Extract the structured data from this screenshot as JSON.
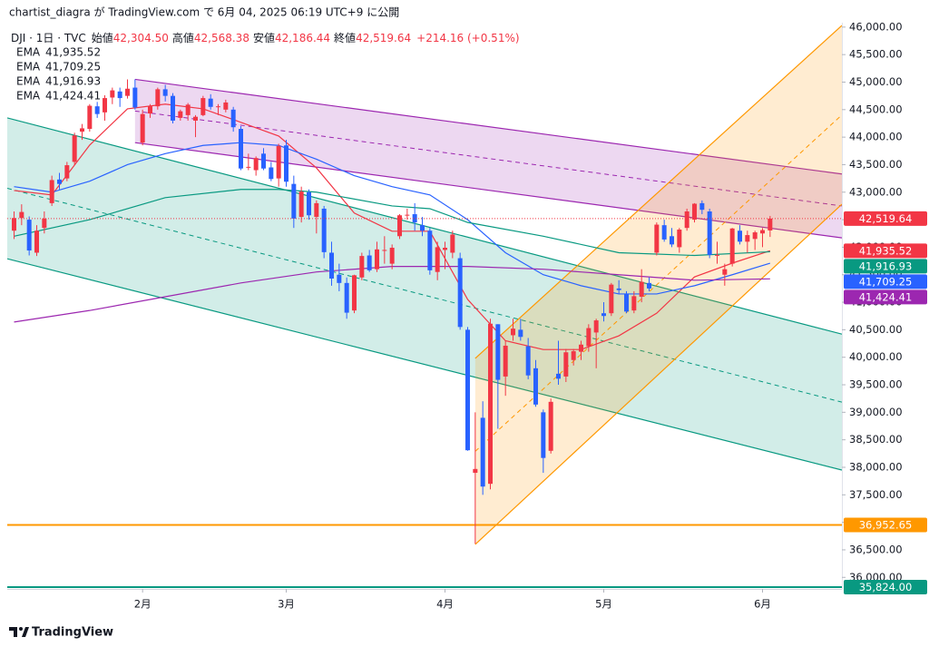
{
  "header": {
    "publisher": "chartist_diagra が TradingView.com で 6月 04, 2025 06:19 UTC+9 に公開",
    "symbol": "DJI · 1日 · TVC",
    "open_name": "始値",
    "open": "42,304.50",
    "high_name": "高値",
    "high": "42,568.38",
    "low_name": "安値",
    "low": "42,186.44",
    "close_name": "終値",
    "close": "42,519.64",
    "change": "+214.16 (+0.51%)"
  },
  "footer": "TradingView",
  "chart_data": {
    "type": "candlestick",
    "up_color": "#f23645",
    "down_color": "#2962ff",
    "xlim": [
      -0.9,
      109.5
    ],
    "xticks": [
      {
        "value": 17,
        "label": "2月"
      },
      {
        "value": 36,
        "label": "3月"
      },
      {
        "value": 57,
        "label": "4月"
      },
      {
        "value": 78,
        "label": "5月"
      },
      {
        "value": 99,
        "label": "6月"
      }
    ],
    "ylim": [
      35790,
      46080
    ],
    "yticks": [
      {
        "value": 36000,
        "label": "36,000.00"
      },
      {
        "value": 36500,
        "label": "36,500.00"
      },
      {
        "value": 37000,
        "label": "37,000.00"
      },
      {
        "value": 37500,
        "label": "37,500.00"
      },
      {
        "value": 38000,
        "label": "38,000.00"
      },
      {
        "value": 38500,
        "label": "38,500.00"
      },
      {
        "value": 39000,
        "label": "39,000.00"
      },
      {
        "value": 39500,
        "label": "39,500.00"
      },
      {
        "value": 40000,
        "label": "40,000.00"
      },
      {
        "value": 40500,
        "label": "40,500.00"
      },
      {
        "value": 41000,
        "label": "41,000.00"
      },
      {
        "value": 41500,
        "label": "41,500.00"
      },
      {
        "value": 42000,
        "label": "42,000.00"
      },
      {
        "value": 42500,
        "label": "42,500.00"
      },
      {
        "value": 43000,
        "label": "43,000.00"
      },
      {
        "value": 43500,
        "label": "43,500.00"
      },
      {
        "value": 44000,
        "label": "44,000.00"
      },
      {
        "value": 44500,
        "label": "44,500.00"
      },
      {
        "value": 45000,
        "label": "45,000.00"
      },
      {
        "value": 45500,
        "label": "45,500.00"
      },
      {
        "value": 46000,
        "label": "46,000.00"
      }
    ],
    "ohlc": [
      [
        42300,
        42650,
        42150,
        42530
      ],
      [
        42530,
        42780,
        42400,
        42640
      ],
      [
        42500,
        42560,
        41850,
        41940
      ],
      [
        41900,
        42400,
        41840,
        42300
      ],
      [
        42350,
        42650,
        42250,
        42520
      ],
      [
        42800,
        43300,
        42750,
        43220
      ],
      [
        43230,
        43350,
        43050,
        43150
      ],
      [
        43250,
        43550,
        43200,
        43490
      ],
      [
        43550,
        44080,
        43500,
        44030
      ],
      [
        44100,
        44240,
        43950,
        44160
      ],
      [
        44150,
        44600,
        44100,
        44570
      ],
      [
        44560,
        44640,
        44350,
        44420
      ],
      [
        44450,
        44760,
        44300,
        44710
      ],
      [
        44720,
        44900,
        44600,
        44850
      ],
      [
        44830,
        44900,
        44550,
        44710
      ],
      [
        44750,
        45050,
        44700,
        44880
      ],
      [
        44900,
        45050,
        44500,
        44540
      ],
      [
        43900,
        44500,
        43850,
        44420
      ],
      [
        44430,
        44600,
        44350,
        44560
      ],
      [
        44560,
        44900,
        44500,
        44870
      ],
      [
        44870,
        44950,
        44650,
        44750
      ],
      [
        44750,
        44800,
        44250,
        44300
      ],
      [
        44350,
        44500,
        44300,
        44470
      ],
      [
        44400,
        44620,
        44300,
        44590
      ],
      [
        44300,
        44400,
        44000,
        44370
      ],
      [
        44400,
        44750,
        44380,
        44710
      ],
      [
        44700,
        44780,
        44500,
        44550
      ],
      [
        44550,
        44600,
        44400,
        44560
      ],
      [
        44500,
        44680,
        44450,
        44630
      ],
      [
        44500,
        44550,
        44100,
        44180
      ],
      [
        44150,
        44200,
        43400,
        43430
      ],
      [
        43450,
        43700,
        43400,
        43460
      ],
      [
        43400,
        43650,
        43300,
        43620
      ],
      [
        43700,
        43800,
        43400,
        43430
      ],
      [
        43450,
        43550,
        43200,
        43240
      ],
      [
        43250,
        43880,
        43100,
        43840
      ],
      [
        43850,
        43950,
        43100,
        43190
      ],
      [
        43150,
        43300,
        42350,
        42520
      ],
      [
        42550,
        43100,
        42450,
        43010
      ],
      [
        43000,
        43050,
        42500,
        42580
      ],
      [
        42550,
        42850,
        42250,
        42800
      ],
      [
        42700,
        42750,
        41800,
        41910
      ],
      [
        41900,
        42100,
        41300,
        41430
      ],
      [
        41500,
        41700,
        41200,
        41350
      ],
      [
        41350,
        41450,
        40700,
        40810
      ],
      [
        40850,
        41500,
        40800,
        41490
      ],
      [
        41450,
        41900,
        41400,
        41840
      ],
      [
        41850,
        41950,
        41550,
        41580
      ],
      [
        41600,
        42100,
        41550,
        41960
      ],
      [
        41950,
        42200,
        41700,
        41950
      ],
      [
        41700,
        42050,
        41600,
        41990
      ],
      [
        42200,
        42600,
        42150,
        42580
      ],
      [
        42580,
        42700,
        42500,
        42590
      ],
      [
        42600,
        42800,
        42300,
        42450
      ],
      [
        42400,
        42550,
        42200,
        42300
      ],
      [
        42300,
        42350,
        41500,
        41580
      ],
      [
        41550,
        42100,
        41400,
        42000
      ],
      [
        41950,
        42100,
        41600,
        41990
      ],
      [
        41900,
        42300,
        41800,
        42230
      ],
      [
        41800,
        41900,
        40500,
        40550
      ],
      [
        40500,
        40550,
        38300,
        38310
      ],
      [
        37900,
        39000,
        36611,
        37970
      ],
      [
        38900,
        39200,
        37500,
        37650
      ],
      [
        37700,
        40700,
        37600,
        40610
      ],
      [
        40600,
        40600,
        38700,
        39590
      ],
      [
        39650,
        40300,
        39300,
        40210
      ],
      [
        40400,
        40700,
        40300,
        40520
      ],
      [
        40500,
        40700,
        40300,
        40370
      ],
      [
        40200,
        40350,
        39600,
        39670
      ],
      [
        39800,
        39950,
        39100,
        39140
      ],
      [
        39000,
        39050,
        37900,
        38170
      ],
      [
        38300,
        39250,
        38250,
        39190
      ],
      [
        39700,
        40300,
        39500,
        39610
      ],
      [
        39650,
        40150,
        39550,
        40090
      ],
      [
        39950,
        40150,
        39850,
        40110
      ],
      [
        40100,
        40300,
        39950,
        40230
      ],
      [
        40200,
        40600,
        40100,
        40530
      ],
      [
        40450,
        40700,
        39800,
        40670
      ],
      [
        40800,
        41000,
        40650,
        40750
      ],
      [
        40800,
        41350,
        40750,
        41320
      ],
      [
        41250,
        41400,
        41150,
        41220
      ],
      [
        41150,
        41200,
        40800,
        40830
      ],
      [
        40850,
        41200,
        40800,
        41110
      ],
      [
        41100,
        41600,
        41000,
        41370
      ],
      [
        41350,
        41450,
        41200,
        41250
      ],
      [
        41900,
        42450,
        41850,
        42410
      ],
      [
        42400,
        42500,
        42100,
        42140
      ],
      [
        42200,
        42350,
        42000,
        42050
      ],
      [
        42000,
        42350,
        41900,
        42320
      ],
      [
        42350,
        42700,
        42300,
        42650
      ],
      [
        42500,
        42800,
        42450,
        42790
      ],
      [
        42800,
        42850,
        42600,
        42680
      ],
      [
        42650,
        42700,
        41800,
        41860
      ],
      [
        41850,
        42100,
        41700,
        41860
      ],
      [
        41500,
        41700,
        41300,
        41600
      ],
      [
        41700,
        42350,
        41650,
        42340
      ],
      [
        42300,
        42400,
        42050,
        42100
      ],
      [
        42100,
        42300,
        41900,
        42220
      ],
      [
        42150,
        42300,
        41950,
        42270
      ],
      [
        42250,
        42350,
        42000,
        42310
      ],
      [
        42304.5,
        42568.38,
        42186.44,
        42519.64
      ]
    ],
    "series": [
      {
        "name": "EMA",
        "color": "#f23645",
        "last_label": "41,935.52",
        "x": [
          0,
          5,
          10,
          15,
          20,
          25,
          30,
          35,
          40,
          45,
          50,
          55,
          60,
          65,
          70,
          75,
          80,
          85,
          90,
          95,
          100
        ],
        "values": [
          43030,
          42950,
          43855,
          44515,
          44600,
          44515,
          44270,
          44020,
          43440,
          42620,
          42290,
          42290,
          41050,
          40300,
          40140,
          40140,
          40390,
          40800,
          41460,
          41710,
          41935.52
        ]
      },
      {
        "name": "EMA",
        "color": "#2962ff",
        "last_label": "41,709.25",
        "x": [
          0,
          5,
          10,
          15,
          20,
          25,
          30,
          35,
          40,
          45,
          50,
          55,
          60,
          65,
          70,
          75,
          80,
          85,
          90,
          95,
          100
        ],
        "values": [
          43100,
          43000,
          43200,
          43500,
          43700,
          43850,
          43900,
          43850,
          43600,
          43300,
          43100,
          42950,
          42500,
          41900,
          41500,
          41300,
          41150,
          41150,
          41300,
          41500,
          41709.25
        ]
      },
      {
        "name": "EMA",
        "color": "#089981",
        "last_label": "41,916.93",
        "x": [
          0,
          10,
          20,
          30,
          35,
          40,
          50,
          55,
          60,
          70,
          80,
          90,
          100
        ],
        "values": [
          42200,
          42500,
          42900,
          43050,
          43050,
          43000,
          42750,
          42700,
          42450,
          42200,
          41900,
          41850,
          41916.93
        ]
      },
      {
        "name": "EMA",
        "color": "#9c27b0",
        "last_label": "41,424.41",
        "x": [
          0,
          10,
          20,
          30,
          40,
          50,
          60,
          70,
          80,
          90,
          100
        ],
        "values": [
          40640,
          40850,
          41100,
          41350,
          41550,
          41650,
          41650,
          41600,
          41500,
          41400,
          41424.41
        ]
      }
    ],
    "channels": [
      {
        "color": "#9c27b0",
        "upper": [
          [
            16,
            45050
          ],
          [
            109.5,
            43330
          ]
        ],
        "lower": [
          [
            16,
            43900
          ],
          [
            109.5,
            42170
          ]
        ]
      },
      {
        "color": "#089981",
        "upper": [
          [
            -0.9,
            44350
          ],
          [
            109.5,
            40420
          ]
        ],
        "lower": [
          [
            -0.9,
            41790
          ],
          [
            109.5,
            37950
          ]
        ]
      },
      {
        "color": "#ff9800",
        "upper": [
          [
            61,
            39980
          ],
          [
            109.5,
            46030
          ]
        ],
        "lower": [
          [
            61,
            36600
          ],
          [
            109.5,
            42780
          ]
        ]
      }
    ],
    "hlines": [
      {
        "value": 36952.65,
        "label": "36,952.65",
        "color": "#ff9800"
      },
      {
        "value": 35824,
        "label": "35,824.00",
        "color": "#089981"
      }
    ],
    "last_price": {
      "value": 42519.64,
      "label": "42,519.64",
      "color": "#f23645"
    }
  }
}
